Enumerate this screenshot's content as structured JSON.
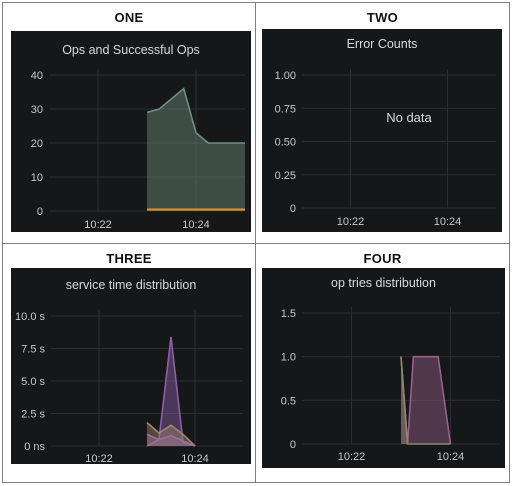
{
  "quadrants": [
    {
      "label": "ONE"
    },
    {
      "label": "TWO"
    },
    {
      "label": "THREE"
    },
    {
      "label": "FOUR"
    }
  ],
  "chart_data": [
    {
      "type": "area",
      "title": "Ops and Successful Ops",
      "x_ticks": [
        "10:22",
        "10:24"
      ],
      "y_ticks": [
        "0",
        "10",
        "20",
        "30",
        "40"
      ],
      "ylim": [
        0,
        40
      ],
      "x": [
        "10:23:00",
        "10:23:15",
        "10:23:30",
        "10:23:45",
        "10:24:00",
        "10:24:15",
        "10:24:30",
        "10:25:00"
      ],
      "series": [
        {
          "values": [
            29,
            30,
            33,
            36,
            23,
            20,
            20,
            20
          ],
          "color": "#6f8f7f"
        },
        {
          "values": [
            0.5,
            0.5,
            0.5,
            0.5,
            0.5,
            0.5,
            0.5,
            0.5
          ],
          "color": "#e0952a"
        }
      ],
      "grid": true
    },
    {
      "type": "line",
      "title": "Error Counts",
      "x_ticks": [
        "10:22",
        "10:24"
      ],
      "y_ticks": [
        "0",
        "0.25",
        "0.50",
        "0.75",
        "1.00"
      ],
      "ylim": [
        0,
        1
      ],
      "series": [],
      "no_data_text": "No data",
      "grid": true
    },
    {
      "type": "area",
      "title": "service time distribution",
      "x_ticks": [
        "10:22",
        "10:24"
      ],
      "y_ticks": [
        "0 ns",
        "2.5 s",
        "5.0 s",
        "7.5 s",
        "10.0 s"
      ],
      "ylim": [
        0,
        10
      ],
      "x": [
        "10:23:00",
        "10:23:15",
        "10:23:30",
        "10:23:45",
        "10:24:00"
      ],
      "series": [
        {
          "values": [
            0,
            0.5,
            8.4,
            0.3,
            0
          ],
          "color": "#8b5fa8"
        },
        {
          "values": [
            1.8,
            1.0,
            1.6,
            0.9,
            0
          ],
          "color": "#a2876d"
        },
        {
          "values": [
            0.9,
            0.5,
            0.8,
            0.4,
            0
          ],
          "color": "#9d6e9a"
        }
      ],
      "grid": true
    },
    {
      "type": "area",
      "title": "op tries distribution",
      "x_ticks": [
        "10:22",
        "10:24"
      ],
      "y_ticks": [
        "0",
        "0.5",
        "1.0",
        "1.5"
      ],
      "ylim": [
        0,
        1.5
      ],
      "x": [
        "10:23:00",
        "10:23:08",
        "10:23:15",
        "10:23:30",
        "10:23:45",
        "10:24:00"
      ],
      "series": [
        {
          "values": [
            1.0,
            0,
            1.0,
            1.0,
            1.0,
            0
          ],
          "color": "#9a5f8a"
        },
        {
          "values": [
            1.0,
            0,
            0,
            0,
            0,
            0
          ],
          "color": "#8a8a6a"
        }
      ],
      "grid": true
    }
  ]
}
